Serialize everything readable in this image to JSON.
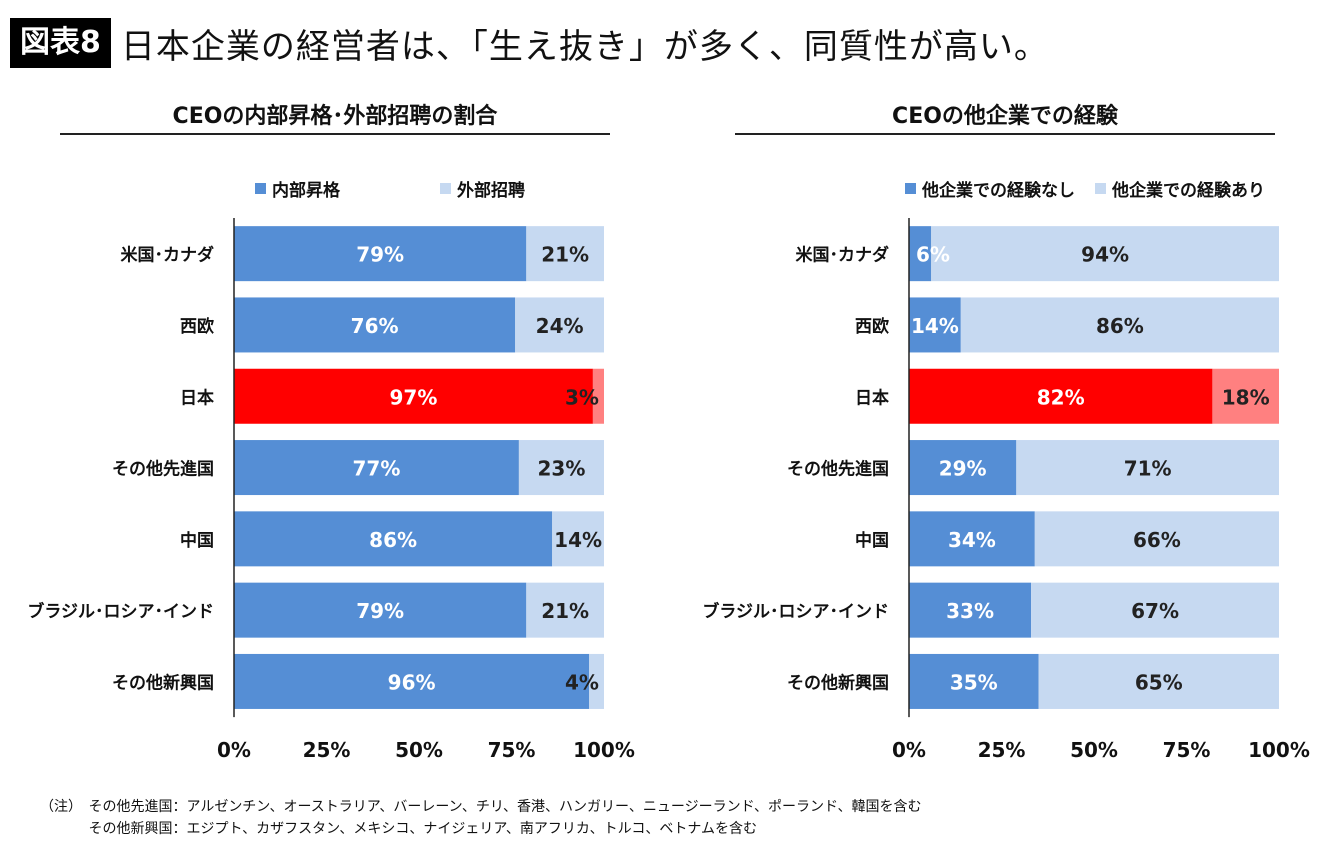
{
  "header": {
    "figure_label": "図表8",
    "headline": "日本企業の経営者は、「生え抜き」が多く、同質性が高い。"
  },
  "colors": {
    "primary": "#558ed5",
    "secondary": "#c6d9f1",
    "highlight_primary": "#ff0000",
    "highlight_secondary": "#ff8080"
  },
  "chart_data": [
    {
      "type": "bar",
      "orientation": "horizontal",
      "stacked": true,
      "title": "CEOの内部昇格･外部招聘の割合",
      "categories": [
        "米国･カナダ",
        "西欧",
        "日本",
        "その他先進国",
        "中国",
        "ブラジル･ロシア･インド",
        "その他新興国"
      ],
      "series": [
        {
          "name": "内部昇格",
          "values": [
            79,
            76,
            97,
            77,
            86,
            79,
            96
          ],
          "labels": [
            "79%",
            "76%",
            "97%",
            "77%",
            "86%",
            "79%",
            "96%"
          ]
        },
        {
          "name": "外部招聘",
          "values": [
            21,
            24,
            3,
            23,
            14,
            21,
            4
          ],
          "labels": [
            "21%",
            "24%",
            "3%",
            "23%",
            "14%",
            "21%",
            "4%"
          ]
        }
      ],
      "highlight_category": "日本",
      "xlim": [
        0,
        100
      ],
      "xticks": [
        "0%",
        "25%",
        "50%",
        "75%",
        "100%"
      ],
      "legend_position": "top"
    },
    {
      "type": "bar",
      "orientation": "horizontal",
      "stacked": true,
      "title": "CEOの他企業での経験",
      "categories": [
        "米国･カナダ",
        "西欧",
        "日本",
        "その他先進国",
        "中国",
        "ブラジル･ロシア･インド",
        "その他新興国"
      ],
      "series": [
        {
          "name": "他企業での経験なし",
          "values": [
            6,
            14,
            82,
            29,
            34,
            33,
            35
          ],
          "labels": [
            "6%",
            "14%",
            "82%",
            "29%",
            "34%",
            "33%",
            "35%"
          ]
        },
        {
          "name": "他企業での経験あり",
          "values": [
            94,
            86,
            18,
            71,
            66,
            67,
            65
          ],
          "labels": [
            "94%",
            "86%",
            "18%",
            "71%",
            "66%",
            "67%",
            "65%"
          ]
        }
      ],
      "highlight_category": "日本",
      "xlim": [
        0,
        100
      ],
      "xticks": [
        "0%",
        "25%",
        "50%",
        "75%",
        "100%"
      ],
      "legend_position": "top"
    }
  ],
  "notes": {
    "prefix": "（注）",
    "lines": [
      "その他先進国：アルゼンチン、オーストラリア、バーレーン、チリ、香港、ハンガリー、ニュージーランド、ポーランド、韓国を含む",
      "その他新興国：エジプト、カザフスタン、メキシコ、ナイジェリア、南アフリカ、トルコ、ベトナムを含む"
    ]
  }
}
